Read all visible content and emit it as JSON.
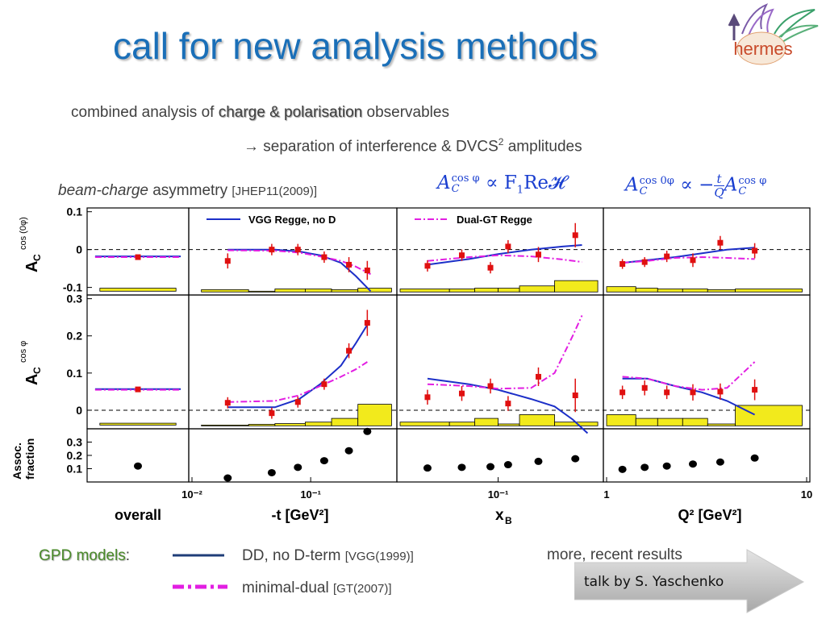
{
  "slide": {
    "title": "call for new analysis methods",
    "logo_text": "hermes",
    "line1_prefix": "combined analysis of ",
    "line1_highlight": "charge & polarisation",
    "line1_suffix": " observables",
    "line2_arrow": "→",
    "line2_text": " separation of interference & DVCS",
    "line2_sup": "2",
    "line2_suffix": " amplitudes",
    "asym_italic": "beam-charge",
    "asym_text": " asymmetry ",
    "asym_ref": "[JHEP11(2009)]",
    "eq1": {
      "A": "A",
      "sup": "cos φ",
      "sub": "C",
      "rest": "∝ F",
      "sub2": "1",
      "rest2": "Re𝓗"
    },
    "eq2": {
      "A": "A",
      "sup": "cos 0φ",
      "sub": "C",
      "rest": "∝ −",
      "frac_num": "t",
      "frac_den": "Q",
      "A2": "A",
      "sup2": "cos φ",
      "sub2": "C"
    }
  },
  "legend": {
    "gpd_label": "GPD models",
    "colon": ":",
    "dd_text": "DD, no D-term ",
    "dd_ref": "[VGG(1999)]",
    "md_text": "minimal-dual ",
    "md_ref": "[GT(2007)]",
    "recent": "more, recent results",
    "talk": "talk by S. Yaschenko"
  },
  "colors": {
    "title": "#1a6fb8",
    "vgg": "#1c2fc8",
    "dual": "#e21ee2",
    "points": "#e01010",
    "syst": "#f2ea1c",
    "eq": "#1a3fd0",
    "gpd_label": "#4a8a2a",
    "dd_legend": "#1f3e78"
  },
  "chart_data": {
    "type": "scatter",
    "columns": [
      {
        "xlabel": "overall",
        "scale": "none"
      },
      {
        "xlabel": "-t [GeV²]",
        "scale": "log",
        "xlim": [
          0.01,
          0.5
        ],
        "ticks": [
          "10⁻²",
          "10⁻¹"
        ]
      },
      {
        "xlabel": "x_B",
        "scale": "log",
        "xlim": [
          0.03,
          0.35
        ],
        "ticks": [
          "10⁻¹"
        ]
      },
      {
        "xlabel": "Q² [GeV²]",
        "scale": "log",
        "xlim": [
          1,
          10
        ],
        "ticks": [
          "1",
          "10"
        ]
      }
    ],
    "rows": [
      {
        "ylabel": "A_C^cos(0φ)",
        "ylim": [
          -0.12,
          0.11
        ],
        "ticks": [
          0.1,
          0,
          -0.1
        ],
        "tick_labels": [
          "0.1",
          "0",
          "-0.1"
        ],
        "zero_line": true
      },
      {
        "ylabel": "A_C^cos φ",
        "ylim": [
          -0.05,
          0.31
        ],
        "ticks": [
          0.3,
          0.2,
          0.1,
          0
        ],
        "tick_labels": [
          "0.3",
          "0.2",
          "0.1",
          "0"
        ],
        "zero_line": true
      },
      {
        "ylabel": "Assoc. fraction",
        "ylim": [
          0.0,
          0.4
        ],
        "ticks": [
          0.3,
          0.2,
          0.1
        ],
        "tick_labels": [
          "0.3",
          "0.2",
          "0.1"
        ],
        "zero_line": false
      }
    ],
    "legend_entries": [
      {
        "row": 0,
        "col": 1,
        "label": "VGG Regge, no D",
        "style": "solid",
        "color": "#1c2fc8"
      },
      {
        "row": 0,
        "col": 2,
        "label": "Dual-GT Regge",
        "style": "dashdot",
        "color": "#e21ee2"
      }
    ],
    "series": [
      {
        "name": "data",
        "row": 0,
        "col": 0,
        "x": [
          0.5
        ],
        "y": [
          -0.02
        ],
        "err": [
          0.005
        ]
      },
      {
        "name": "data",
        "row": 0,
        "col": 1,
        "x": [
          0.02,
          0.047,
          0.078,
          0.13,
          0.21,
          0.3
        ],
        "y": [
          -0.03,
          0.0,
          0.0,
          -0.02,
          -0.04,
          -0.055
        ],
        "err": [
          0.02,
          0.015,
          0.015,
          0.015,
          0.02,
          0.025
        ]
      },
      {
        "name": "data",
        "row": 0,
        "col": 2,
        "x": [
          0.042,
          0.064,
          0.091,
          0.113,
          0.164,
          0.258
        ],
        "y": [
          -0.043,
          -0.015,
          -0.048,
          0.008,
          -0.013,
          0.038
        ],
        "err": [
          0.015,
          0.015,
          0.015,
          0.017,
          0.02,
          0.032
        ]
      },
      {
        "name": "data",
        "row": 0,
        "col": 3,
        "x": [
          1.2,
          1.55,
          2.0,
          2.7,
          3.7,
          5.5
        ],
        "y": [
          -0.038,
          -0.033,
          -0.018,
          -0.028,
          0.018,
          -0.003
        ],
        "err": [
          0.013,
          0.013,
          0.015,
          0.018,
          0.018,
          0.02
        ]
      },
      {
        "name": "data",
        "row": 1,
        "col": 0,
        "x": [
          0.5
        ],
        "y": [
          0.056
        ],
        "err": [
          0.005
        ]
      },
      {
        "name": "data",
        "row": 1,
        "col": 1,
        "x": [
          0.02,
          0.047,
          0.078,
          0.13,
          0.21,
          0.3
        ],
        "y": [
          0.02,
          -0.008,
          0.022,
          0.07,
          0.16,
          0.235
        ],
        "err": [
          0.015,
          0.015,
          0.015,
          0.015,
          0.02,
          0.035
        ]
      },
      {
        "name": "data",
        "row": 1,
        "col": 2,
        "x": [
          0.042,
          0.064,
          0.091,
          0.113,
          0.164,
          0.258
        ],
        "y": [
          0.035,
          0.045,
          0.065,
          0.018,
          0.09,
          0.04
        ],
        "err": [
          0.02,
          0.02,
          0.02,
          0.02,
          0.025,
          0.045
        ]
      },
      {
        "name": "data",
        "row": 1,
        "col": 3,
        "x": [
          1.2,
          1.55,
          2.0,
          2.7,
          3.7,
          5.5
        ],
        "y": [
          0.048,
          0.06,
          0.048,
          0.048,
          0.05,
          0.055
        ],
        "err": [
          0.018,
          0.02,
          0.018,
          0.022,
          0.022,
          0.028
        ]
      },
      {
        "name": "data",
        "row": 2,
        "col": 0,
        "x": [
          0.5
        ],
        "y": [
          0.12
        ]
      },
      {
        "name": "data",
        "row": 2,
        "col": 1,
        "x": [
          0.02,
          0.047,
          0.078,
          0.13,
          0.21,
          0.3
        ],
        "y": [
          0.03,
          0.07,
          0.11,
          0.16,
          0.235,
          0.38
        ]
      },
      {
        "name": "data",
        "row": 2,
        "col": 2,
        "x": [
          0.042,
          0.064,
          0.091,
          0.113,
          0.164,
          0.258
        ],
        "y": [
          0.105,
          0.11,
          0.115,
          0.13,
          0.155,
          0.175
        ]
      },
      {
        "name": "data",
        "row": 2,
        "col": 3,
        "x": [
          1.2,
          1.55,
          2.0,
          2.7,
          3.7,
          5.5
        ],
        "y": [
          0.095,
          0.11,
          0.12,
          0.135,
          0.15,
          0.18
        ]
      }
    ],
    "curves": [
      {
        "model": "VGG",
        "row": 0,
        "col": 0,
        "x": [
          0.05,
          0.95
        ],
        "y": [
          -0.018,
          -0.018
        ]
      },
      {
        "model": "Dual",
        "row": 0,
        "col": 0,
        "x": [
          0.05,
          0.95
        ],
        "y": [
          -0.02,
          -0.02
        ]
      },
      {
        "model": "VGG",
        "row": 0,
        "col": 1,
        "x": [
          0.02,
          0.05,
          0.08,
          0.12,
          0.18,
          0.24,
          0.32
        ],
        "y": [
          0.0,
          0.0,
          -0.005,
          -0.015,
          -0.035,
          -0.07,
          -0.11
        ]
      },
      {
        "model": "Dual",
        "row": 0,
        "col": 1,
        "x": [
          0.02,
          0.05,
          0.08,
          0.12,
          0.18,
          0.24,
          0.32
        ],
        "y": [
          -0.002,
          -0.003,
          -0.008,
          -0.018,
          -0.03,
          -0.045,
          -0.065
        ]
      },
      {
        "model": "VGG",
        "row": 0,
        "col": 2,
        "x": [
          0.042,
          0.07,
          0.1,
          0.15,
          0.22,
          0.28
        ],
        "y": [
          -0.04,
          -0.025,
          -0.012,
          0.0,
          0.008,
          0.012
        ]
      },
      {
        "model": "Dual",
        "row": 0,
        "col": 2,
        "x": [
          0.042,
          0.07,
          0.1,
          0.15,
          0.22,
          0.28
        ],
        "y": [
          -0.03,
          -0.02,
          -0.015,
          -0.018,
          -0.026,
          -0.033
        ]
      },
      {
        "model": "VGG",
        "row": 0,
        "col": 3,
        "x": [
          1.2,
          1.6,
          2.2,
          3.0,
          4.0,
          5.5
        ],
        "y": [
          -0.035,
          -0.028,
          -0.02,
          -0.01,
          0.0,
          0.005
        ]
      },
      {
        "model": "Dual",
        "row": 0,
        "col": 3,
        "x": [
          1.2,
          1.6,
          2.2,
          3.0,
          4.0,
          5.5
        ],
        "y": [
          -0.035,
          -0.03,
          -0.022,
          -0.02,
          -0.022,
          -0.025
        ]
      },
      {
        "model": "VGG",
        "row": 1,
        "col": 0,
        "x": [
          0.05,
          0.95
        ],
        "y": [
          0.057,
          0.057
        ]
      },
      {
        "model": "Dual",
        "row": 1,
        "col": 0,
        "x": [
          0.05,
          0.95
        ],
        "y": [
          0.055,
          0.055
        ]
      },
      {
        "model": "VGG",
        "row": 1,
        "col": 1,
        "x": [
          0.02,
          0.05,
          0.08,
          0.12,
          0.18,
          0.24,
          0.3
        ],
        "y": [
          0.008,
          0.008,
          0.03,
          0.07,
          0.12,
          0.18,
          0.23
        ]
      },
      {
        "model": "Dual",
        "row": 1,
        "col": 1,
        "x": [
          0.02,
          0.05,
          0.08,
          0.12,
          0.18,
          0.24,
          0.3
        ],
        "y": [
          0.022,
          0.025,
          0.04,
          0.065,
          0.09,
          0.11,
          0.13
        ]
      },
      {
        "model": "VGG",
        "row": 1,
        "col": 2,
        "x": [
          0.042,
          0.07,
          0.1,
          0.15,
          0.2,
          0.25,
          0.3
        ],
        "y": [
          0.085,
          0.07,
          0.055,
          0.03,
          0.01,
          -0.025,
          -0.062
        ]
      },
      {
        "model": "Dual",
        "row": 1,
        "col": 2,
        "x": [
          0.042,
          0.07,
          0.1,
          0.15,
          0.2,
          0.25,
          0.28
        ],
        "y": [
          0.07,
          0.065,
          0.058,
          0.06,
          0.1,
          0.2,
          0.255
        ]
      },
      {
        "model": "VGG",
        "row": 1,
        "col": 3,
        "x": [
          1.2,
          1.6,
          2.2,
          3.0,
          4.0,
          5.5
        ],
        "y": [
          0.085,
          0.085,
          0.065,
          0.048,
          0.025,
          -0.012
        ]
      },
      {
        "model": "Dual",
        "row": 1,
        "col": 3,
        "x": [
          1.2,
          1.6,
          2.2,
          3.0,
          4.0,
          5.5
        ],
        "y": [
          0.09,
          0.085,
          0.065,
          0.055,
          0.06,
          0.13
        ]
      }
    ]
  }
}
